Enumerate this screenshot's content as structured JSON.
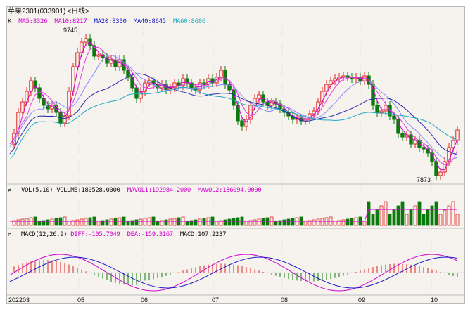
{
  "window": {
    "title": "苹果2301(033901)",
    "period": "<日线>"
  },
  "price_panel": {
    "indicator_label": "K",
    "ma": [
      {
        "label": "MA5:8326",
        "color": "#d100d1"
      },
      {
        "label": "MA10:8217",
        "color": "#d100d1"
      },
      {
        "label": "MA20:8300",
        "color": "#1a1acb"
      },
      {
        "label": "MA40:8645",
        "color": "#1a1acb"
      },
      {
        "label": "MA60:8686",
        "color": "#1faabf"
      }
    ],
    "high_annotation": "9745",
    "low_annotation": "7873"
  },
  "volume_panel": {
    "icon": "swap-icon",
    "label": "VOL(5,10)",
    "volume": "VOLUME:180528.0000",
    "mavol1": "MAVOL1:192984.2000",
    "mavol2": "MAVOL2:186094.0000",
    "colors": {
      "label": "#111111",
      "volume": "#111111",
      "mavol1": "#d100d1",
      "mavol2": "#d100d1"
    }
  },
  "macd_panel": {
    "icon": "swap-icon",
    "label": "MACD(12,26,9)",
    "diff": "DIFF:-105.7049",
    "dea": "DEA:-159.3167",
    "macd": "MACD:107.2237",
    "colors": {
      "label": "#111111",
      "diff": "#d100d1",
      "dea": "#d100d1",
      "macd": "#111111"
    }
  },
  "x_axis": [
    "202203",
    "05",
    "06",
    "07",
    "08",
    "09",
    "10"
  ],
  "colors": {
    "up": "#e02020",
    "down": "#0a7a0a",
    "background": "#f6f3ee",
    "grid": "#d0ccc4"
  }
}
